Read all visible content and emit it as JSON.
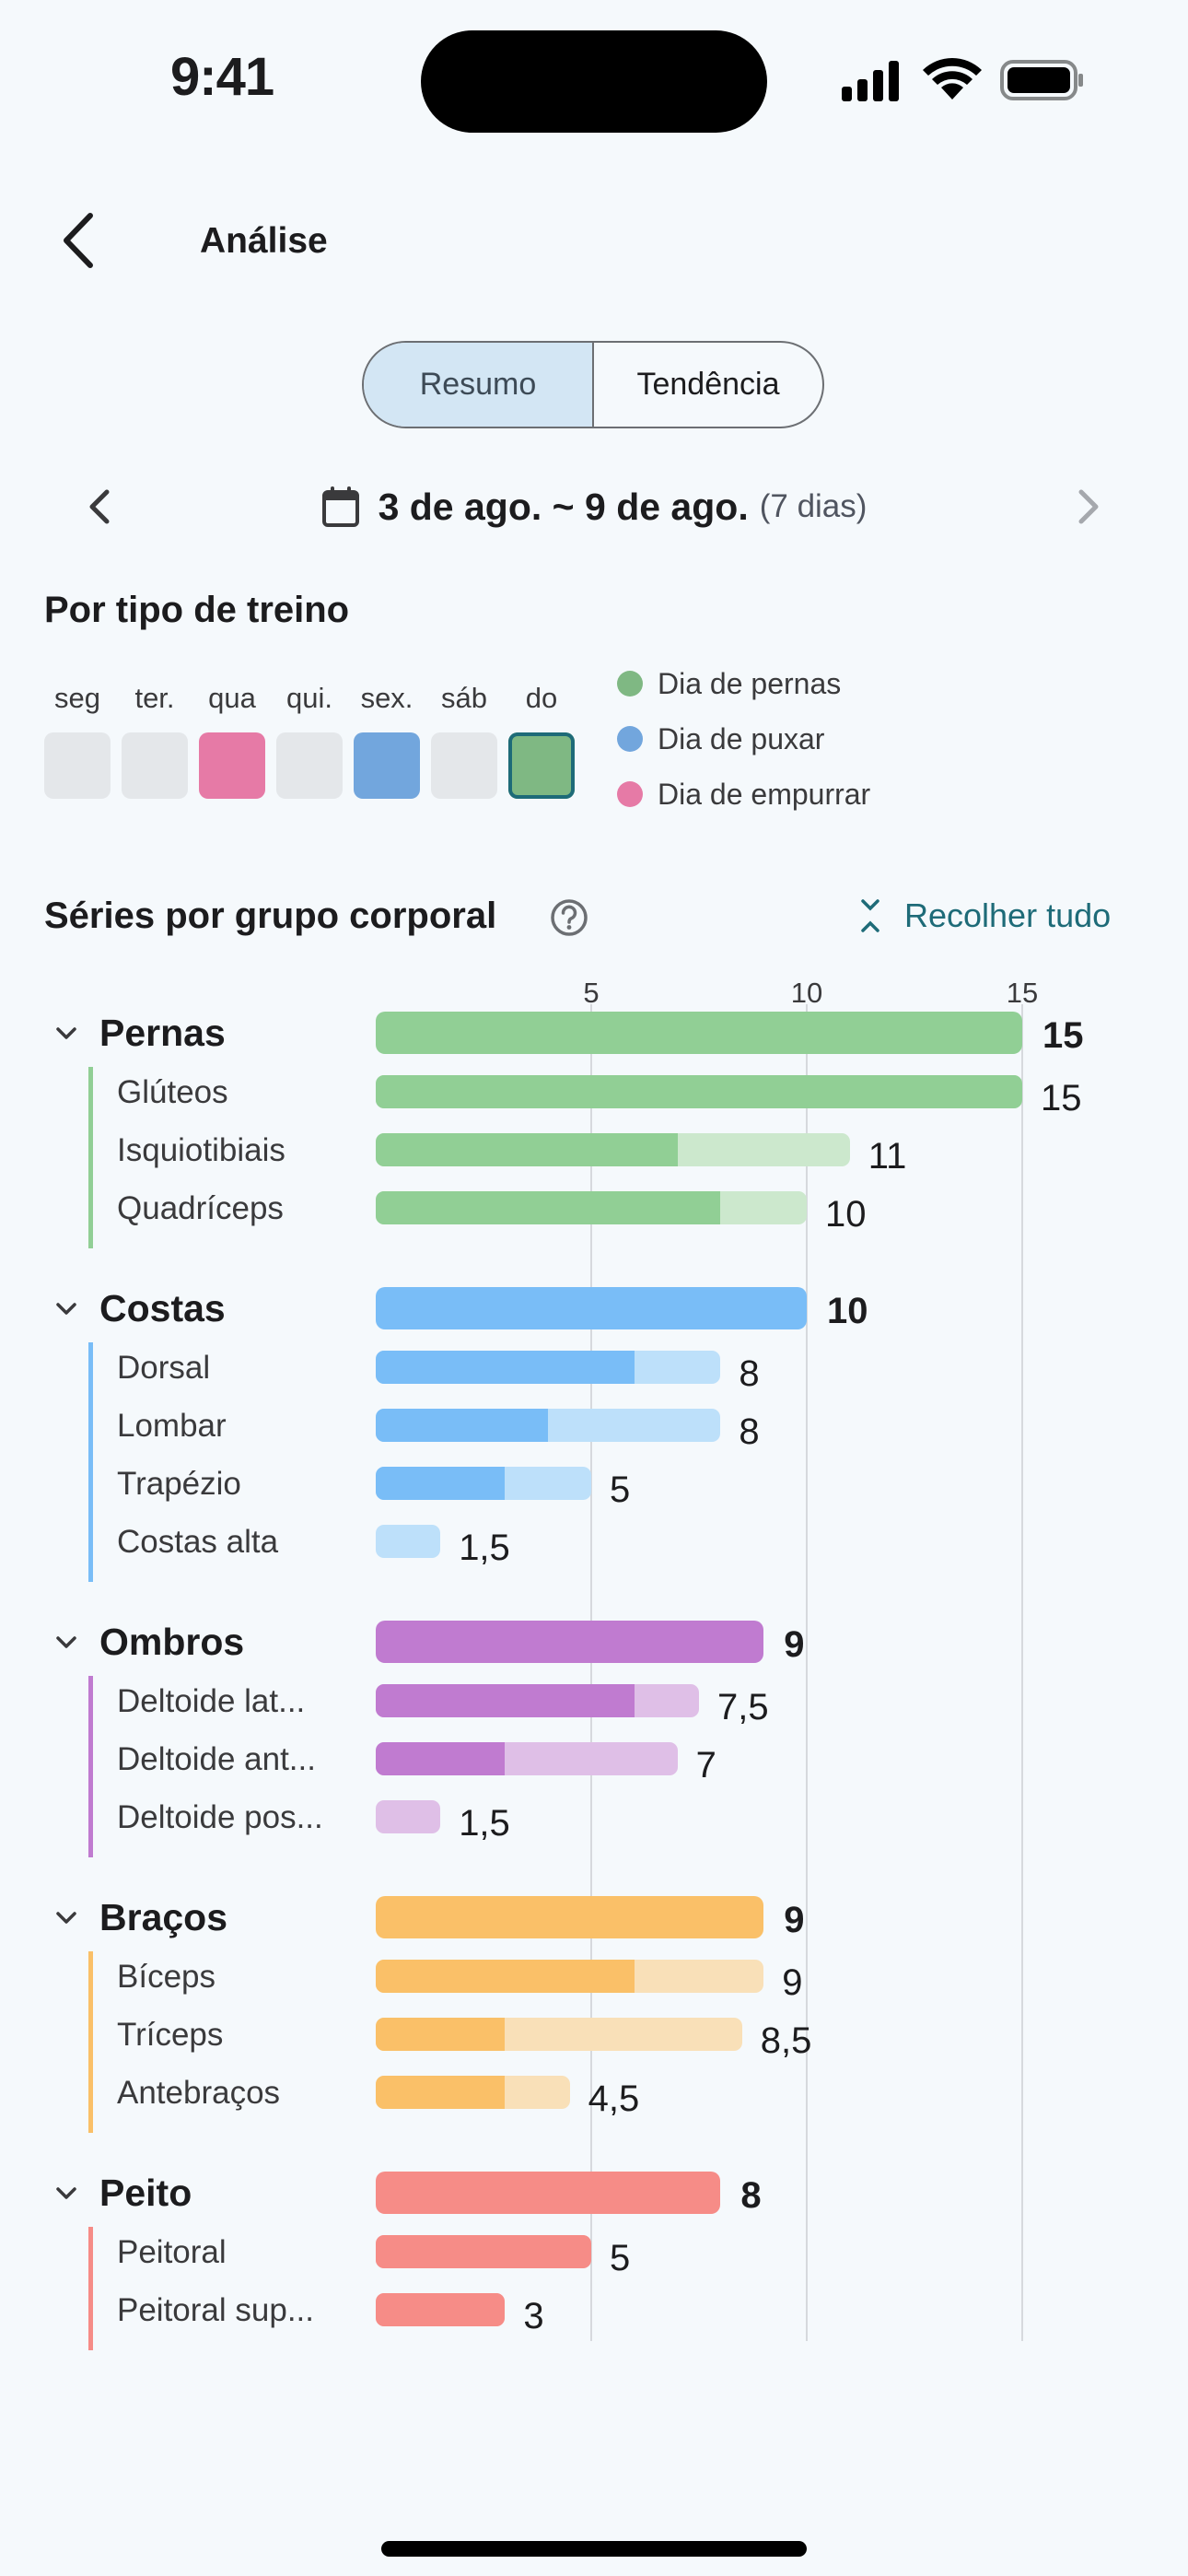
{
  "status": {
    "time": "9:41"
  },
  "header": {
    "title": "Análise"
  },
  "tabs": [
    {
      "label": "Resumo",
      "active": true
    },
    {
      "label": "Tendência",
      "active": false
    }
  ],
  "date": {
    "range": "3 de ago. ~ 9 de ago.",
    "days": "(7 dias)"
  },
  "workout_type": {
    "title": "Por tipo de treino",
    "days": [
      {
        "label": "seg",
        "type": "none"
      },
      {
        "label": "ter.",
        "type": "none"
      },
      {
        "label": "qua",
        "type": "push"
      },
      {
        "label": "qui.",
        "type": "none"
      },
      {
        "label": "sex.",
        "type": "pull"
      },
      {
        "label": "sáb",
        "type": "none"
      },
      {
        "label": "do",
        "type": "legs",
        "selected": true
      }
    ],
    "legend": [
      {
        "label": "Dia de pernas",
        "color": "#7fb883"
      },
      {
        "label": "Dia de puxar",
        "color": "#72a6dd"
      },
      {
        "label": "Dia de empurrar",
        "color": "#e67aa6"
      }
    ],
    "colors": {
      "none": "#e4e7ea",
      "push": "#e67aa6",
      "pull": "#72a6dd",
      "legs": "#7fb883"
    }
  },
  "sets_section": {
    "title": "Séries por grupo corporal",
    "collapse_label": "Recolher tudo"
  },
  "chart_data": {
    "type": "bar",
    "orientation": "horizontal",
    "x_ticks": [
      "5",
      "10",
      "15"
    ],
    "xlim": [
      0,
      15
    ],
    "groups": [
      {
        "name": "Pernas",
        "total": 15,
        "total_label": "15",
        "color": "#91cf95",
        "light": "#cce8cd",
        "items": [
          {
            "name": "Glúteos",
            "value": 15,
            "primary": 15,
            "label": "15"
          },
          {
            "name": "Isquiotibiais",
            "value": 11,
            "primary": 7,
            "label": "11"
          },
          {
            "name": "Quadríceps",
            "value": 10,
            "primary": 8,
            "label": "10"
          }
        ]
      },
      {
        "name": "Costas",
        "total": 10,
        "total_label": "10",
        "color": "#79bdf7",
        "light": "#bde0fa",
        "items": [
          {
            "name": "Dorsal",
            "value": 8,
            "primary": 6,
            "label": "8"
          },
          {
            "name": "Lombar",
            "value": 8,
            "primary": 4,
            "label": "8"
          },
          {
            "name": "Trapézio",
            "value": 5,
            "primary": 3,
            "label": "5"
          },
          {
            "name": "Costas alta",
            "value": 1.5,
            "primary": 0,
            "label": "1,5"
          }
        ]
      },
      {
        "name": "Ombros",
        "total": 9,
        "total_label": "9",
        "color": "#c07bd0",
        "light": "#dfbfe7",
        "items": [
          {
            "name": "Deltoide lat...",
            "value": 7.5,
            "primary": 6,
            "label": "7,5"
          },
          {
            "name": "Deltoide ant...",
            "value": 7,
            "primary": 3,
            "label": "7"
          },
          {
            "name": "Deltoide pos...",
            "value": 1.5,
            "primary": 0,
            "label": "1,5"
          }
        ]
      },
      {
        "name": "Braços",
        "total": 9,
        "total_label": "9",
        "color": "#fac068",
        "light": "#f9e0b8",
        "items": [
          {
            "name": "Bíceps",
            "value": 9,
            "primary": 6,
            "label": "9"
          },
          {
            "name": "Tríceps",
            "value": 8.5,
            "primary": 3,
            "label": "8,5"
          },
          {
            "name": "Antebraços",
            "value": 4.5,
            "primary": 3,
            "label": "4,5"
          }
        ]
      },
      {
        "name": "Peito",
        "total": 8,
        "total_label": "8",
        "color": "#f68c87",
        "light": "#f9c3c0",
        "items": [
          {
            "name": "Peitoral",
            "value": 5,
            "primary": 5,
            "label": "5"
          },
          {
            "name": "Peitoral sup...",
            "value": 3,
            "primary": 3,
            "label": "3"
          }
        ]
      }
    ]
  }
}
